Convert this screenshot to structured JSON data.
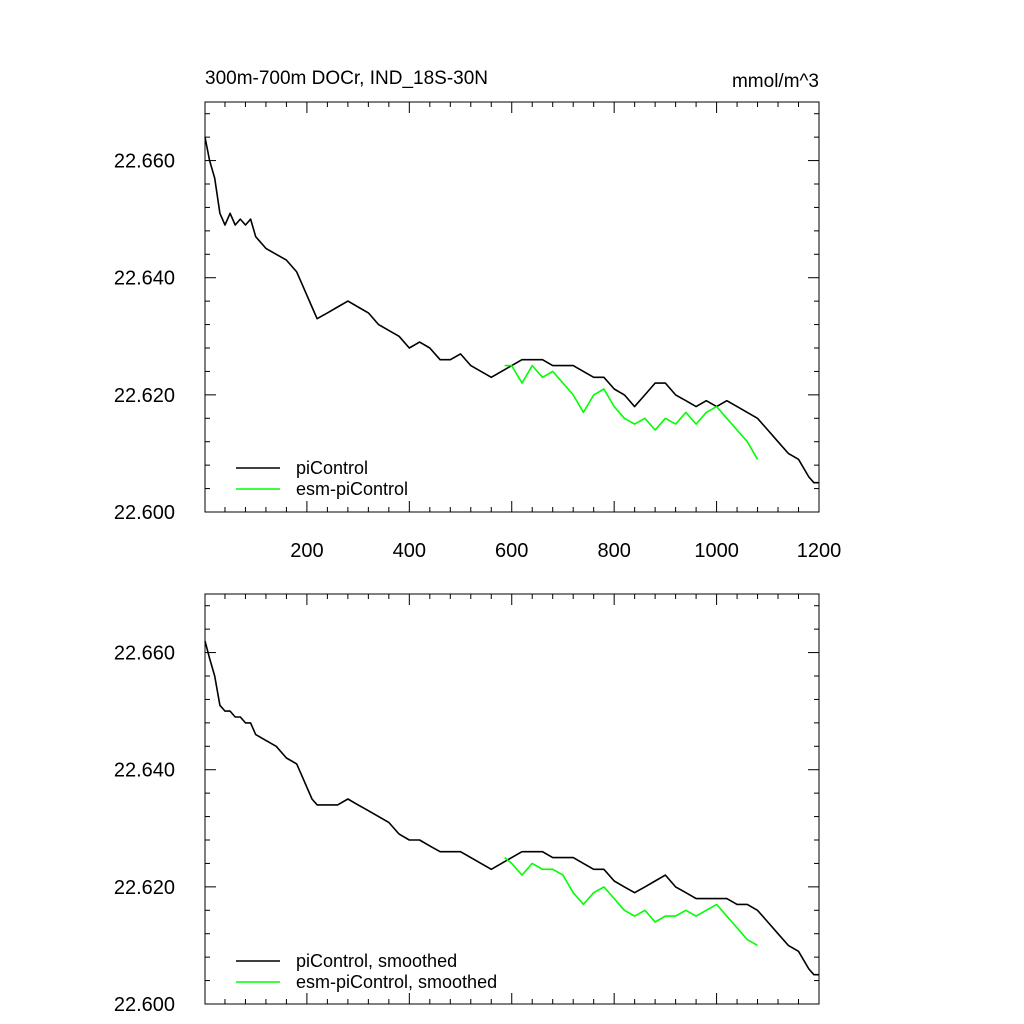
{
  "page": {
    "title": "300m-700m DOCr, IND_18S-30N",
    "units": "mmol/m^3"
  },
  "chart_data": [
    {
      "type": "line",
      "title": "300m-700m DOCr, IND_18S-30N",
      "units_label": "mmol/m^3",
      "xlim": [
        1,
        1200
      ],
      "ylim": [
        22.6,
        22.67
      ],
      "xticks": [
        200,
        400,
        600,
        800,
        1000,
        1200
      ],
      "xtick_labels": [
        "200",
        "400",
        "600",
        "800",
        "1000",
        "1200"
      ],
      "yticks": [
        22.6,
        22.62,
        22.64,
        22.66
      ],
      "ytick_labels": [
        "22.600",
        "22.620",
        "22.640",
        "22.660"
      ],
      "legend_position": "bottom-left",
      "series": [
        {
          "name": "piControl",
          "color": "#000000",
          "x": [
            1,
            10,
            20,
            30,
            40,
            50,
            60,
            70,
            80,
            90,
            100,
            120,
            140,
            160,
            180,
            190,
            200,
            210,
            220,
            240,
            260,
            280,
            300,
            320,
            340,
            360,
            380,
            400,
            420,
            440,
            460,
            480,
            500,
            520,
            540,
            560,
            580,
            600,
            620,
            640,
            660,
            680,
            700,
            720,
            740,
            760,
            780,
            800,
            820,
            840,
            860,
            880,
            900,
            920,
            940,
            960,
            980,
            1000,
            1020,
            1040,
            1060,
            1080,
            1100,
            1120,
            1140,
            1160,
            1180,
            1190,
            1200
          ],
          "y": [
            22.664,
            22.66,
            22.657,
            22.651,
            22.649,
            22.651,
            22.649,
            22.65,
            22.649,
            22.65,
            22.647,
            22.645,
            22.644,
            22.643,
            22.641,
            22.639,
            22.637,
            22.635,
            22.633,
            22.634,
            22.635,
            22.636,
            22.635,
            22.634,
            22.632,
            22.631,
            22.63,
            22.628,
            22.629,
            22.628,
            22.626,
            22.626,
            22.627,
            22.625,
            22.624,
            22.623,
            22.624,
            22.625,
            22.626,
            22.626,
            22.626,
            22.625,
            22.625,
            22.625,
            22.624,
            22.623,
            22.623,
            22.621,
            22.62,
            22.618,
            22.62,
            22.622,
            22.622,
            22.62,
            22.619,
            22.618,
            22.619,
            22.618,
            22.619,
            22.618,
            22.617,
            22.616,
            22.614,
            22.612,
            22.61,
            22.609,
            22.606,
            22.605,
            22.605
          ]
        },
        {
          "name": "esm-piControl",
          "color": "#00ff00",
          "x": [
            586,
            600,
            620,
            640,
            660,
            680,
            700,
            720,
            740,
            760,
            780,
            800,
            820,
            840,
            860,
            880,
            900,
            920,
            940,
            960,
            980,
            1000,
            1020,
            1040,
            1060,
            1080
          ],
          "y": [
            22.625,
            22.625,
            22.622,
            22.625,
            22.623,
            22.624,
            22.622,
            22.62,
            22.617,
            22.62,
            22.621,
            22.618,
            22.616,
            22.615,
            22.616,
            22.614,
            22.616,
            22.615,
            22.617,
            22.615,
            22.617,
            22.618,
            22.616,
            22.614,
            22.612,
            22.609
          ]
        }
      ]
    },
    {
      "type": "line",
      "xlim": [
        1,
        1200
      ],
      "ylim": [
        22.6,
        22.67
      ],
      "xticks": [
        200,
        400,
        600,
        800,
        1000,
        1200
      ],
      "yticks": [
        22.6,
        22.62,
        22.64,
        22.66
      ],
      "ytick_labels": [
        "22.600",
        "22.620",
        "22.640",
        "22.660"
      ],
      "legend_position": "bottom-left",
      "series": [
        {
          "name": "piControl, smoothed",
          "color": "#000000",
          "x": [
            1,
            10,
            20,
            30,
            40,
            50,
            60,
            70,
            80,
            90,
            100,
            120,
            140,
            160,
            180,
            190,
            200,
            210,
            220,
            240,
            260,
            280,
            300,
            320,
            340,
            360,
            380,
            400,
            420,
            440,
            460,
            480,
            500,
            520,
            540,
            560,
            580,
            600,
            620,
            640,
            660,
            680,
            700,
            720,
            740,
            760,
            780,
            800,
            820,
            840,
            860,
            880,
            900,
            920,
            940,
            960,
            980,
            1000,
            1020,
            1040,
            1060,
            1080,
            1100,
            1120,
            1140,
            1160,
            1180,
            1190,
            1200
          ],
          "y": [
            22.662,
            22.659,
            22.656,
            22.651,
            22.65,
            22.65,
            22.649,
            22.649,
            22.648,
            22.648,
            22.646,
            22.645,
            22.644,
            22.642,
            22.641,
            22.639,
            22.637,
            22.635,
            22.634,
            22.634,
            22.634,
            22.635,
            22.634,
            22.633,
            22.632,
            22.631,
            22.629,
            22.628,
            22.628,
            22.627,
            22.626,
            22.626,
            22.626,
            22.625,
            22.624,
            22.623,
            22.624,
            22.625,
            22.626,
            22.626,
            22.626,
            22.625,
            22.625,
            22.625,
            22.624,
            22.623,
            22.623,
            22.621,
            22.62,
            22.619,
            22.62,
            22.621,
            22.622,
            22.62,
            22.619,
            22.618,
            22.618,
            22.618,
            22.618,
            22.617,
            22.617,
            22.616,
            22.614,
            22.612,
            22.61,
            22.609,
            22.606,
            22.605,
            22.605
          ]
        },
        {
          "name": "esm-piControl, smoothed",
          "color": "#00ff00",
          "x": [
            586,
            600,
            620,
            640,
            660,
            680,
            700,
            720,
            740,
            760,
            780,
            800,
            820,
            840,
            860,
            880,
            900,
            920,
            940,
            960,
            980,
            1000,
            1020,
            1040,
            1060,
            1080
          ],
          "y": [
            22.625,
            22.624,
            22.622,
            22.624,
            22.623,
            22.623,
            22.622,
            22.619,
            22.617,
            22.619,
            22.62,
            22.618,
            22.616,
            22.615,
            22.616,
            22.614,
            22.615,
            22.615,
            22.616,
            22.615,
            22.616,
            22.617,
            22.615,
            22.613,
            22.611,
            22.61
          ]
        }
      ]
    }
  ]
}
